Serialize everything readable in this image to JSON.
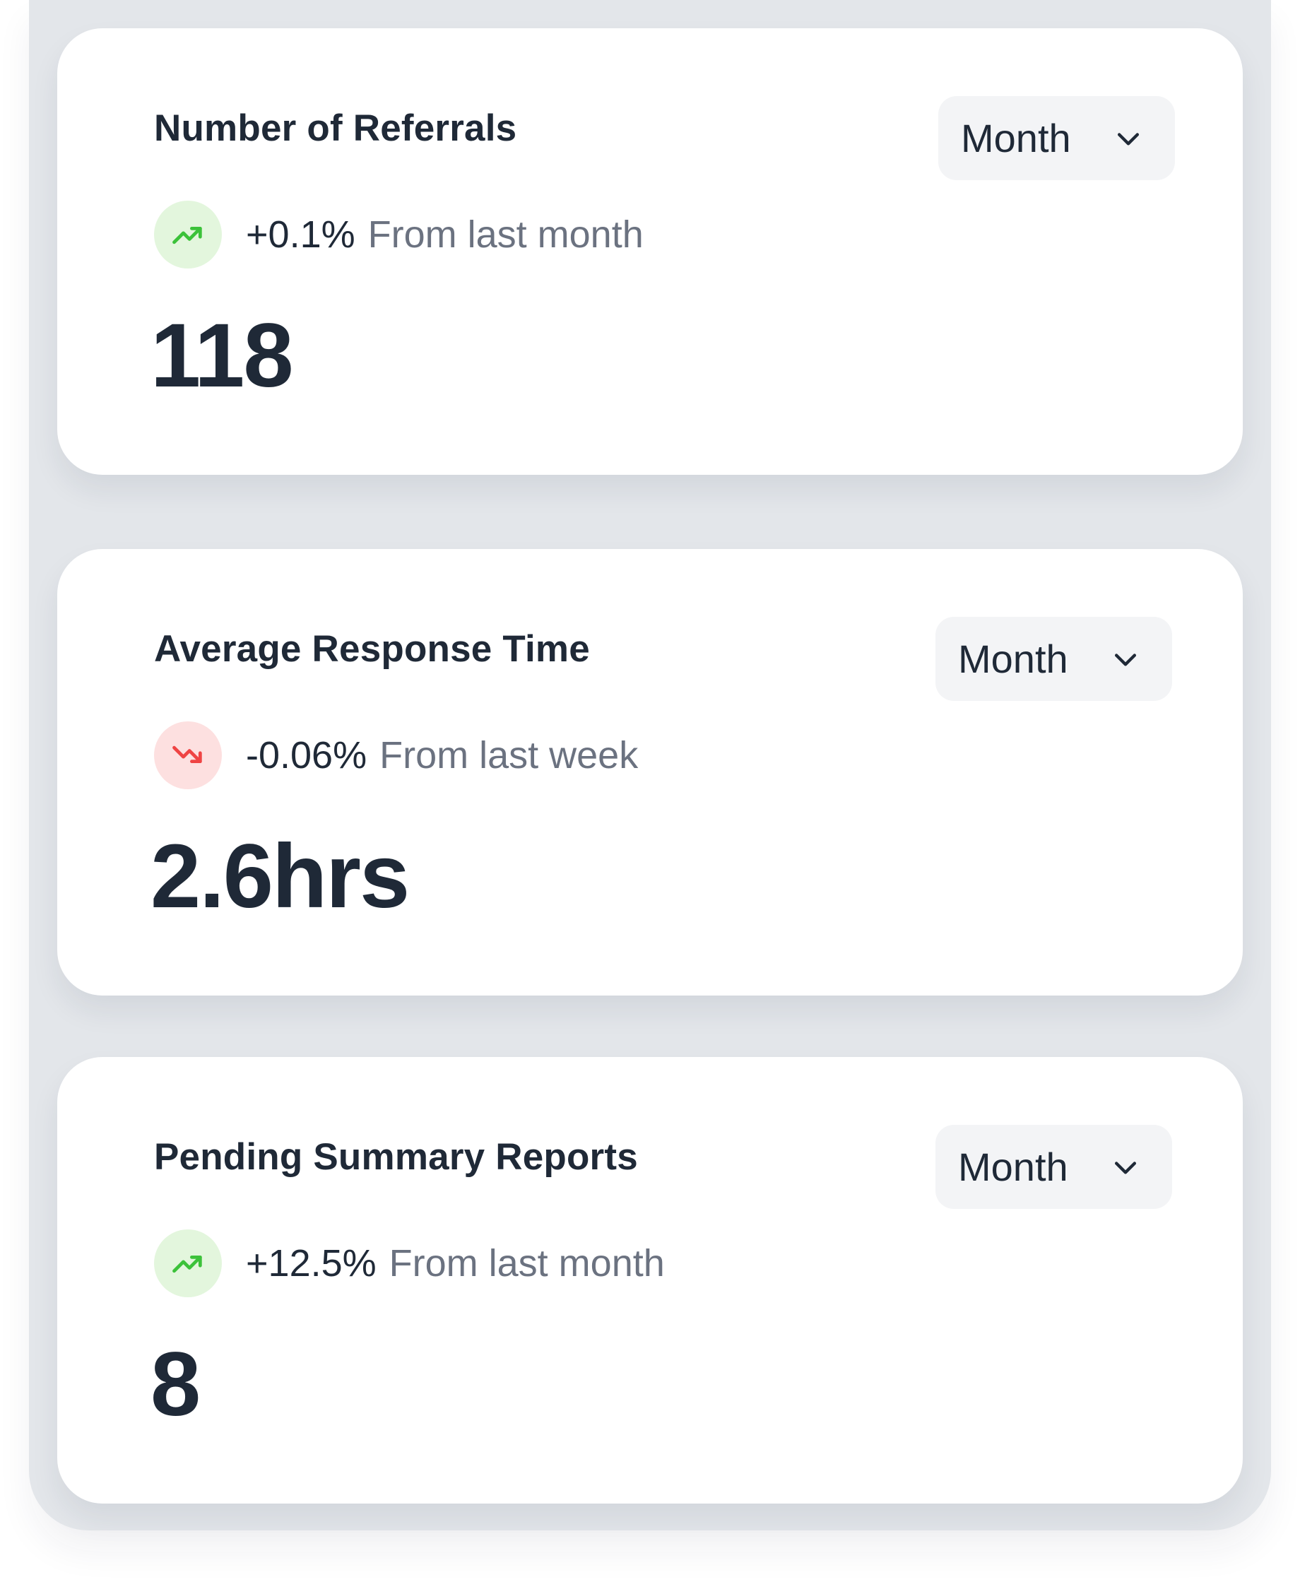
{
  "cards": [
    {
      "title": "Number of Referrals",
      "period": "Month",
      "trend": {
        "direction": "up",
        "value": "+0.1%",
        "caption": "From last month"
      },
      "metric": "118"
    },
    {
      "title": "Average Response Time",
      "period": "Month",
      "trend": {
        "direction": "down",
        "value": "-0.06%",
        "caption": "From last week"
      },
      "metric": "2.6hrs"
    },
    {
      "title": "Pending Summary Reports",
      "period": "Month",
      "trend": {
        "direction": "up",
        "value": "+12.5%",
        "caption": "From last month"
      },
      "metric": "8"
    }
  ],
  "colors": {
    "trend_up": "#3cc23a",
    "trend_down": "#ef4444",
    "text_primary": "#1f2937",
    "text_muted": "#6b7280"
  },
  "icons": {
    "trend_up": "trending-up-icon",
    "trend_down": "trending-down-icon",
    "dropdown": "chevron-down-icon"
  }
}
